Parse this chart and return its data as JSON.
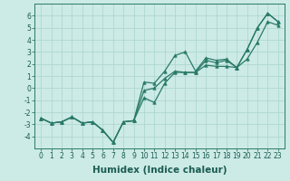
{
  "xlabel": "Humidex (Indice chaleur)",
  "x_values": [
    0,
    1,
    2,
    3,
    4,
    5,
    6,
    7,
    8,
    9,
    10,
    11,
    12,
    13,
    14,
    15,
    16,
    17,
    18,
    19,
    20,
    21,
    22,
    23
  ],
  "line1": [
    -2.5,
    -2.9,
    -2.8,
    -2.4,
    -2.9,
    -2.8,
    -3.5,
    -4.5,
    -2.8,
    -2.7,
    0.5,
    0.4,
    1.4,
    2.7,
    3.0,
    1.4,
    2.5,
    2.3,
    2.4,
    1.7,
    3.2,
    5.0,
    6.2,
    5.5
  ],
  "line2": [
    -2.5,
    -2.9,
    -2.8,
    -2.4,
    -2.9,
    -2.8,
    -3.5,
    -4.5,
    -2.8,
    -2.7,
    -0.8,
    -1.2,
    0.4,
    1.3,
    1.3,
    1.3,
    2.3,
    2.1,
    2.3,
    1.7,
    3.2,
    5.0,
    6.2,
    5.5
  ],
  "line3": [
    -2.5,
    -2.9,
    -2.8,
    -2.4,
    -2.9,
    -2.8,
    -3.5,
    -4.5,
    -2.8,
    -2.7,
    -0.2,
    0.0,
    0.8,
    1.4,
    1.3,
    1.3,
    1.9,
    1.8,
    1.8,
    1.7,
    2.4,
    3.8,
    5.5,
    5.2
  ],
  "line_color": "#2a7a68",
  "bg_color": "#cceae6",
  "grid_color": "#aad4cf",
  "ylim": [
    -5,
    7
  ],
  "yticks": [
    -4,
    -3,
    -2,
    -1,
    0,
    1,
    2,
    3,
    4,
    5,
    6
  ],
  "xticks": [
    0,
    1,
    2,
    3,
    4,
    5,
    6,
    7,
    8,
    9,
    10,
    11,
    12,
    13,
    14,
    15,
    16,
    17,
    18,
    19,
    20,
    21,
    22,
    23
  ],
  "tick_fontsize": 5.5,
  "label_fontsize": 7.5
}
